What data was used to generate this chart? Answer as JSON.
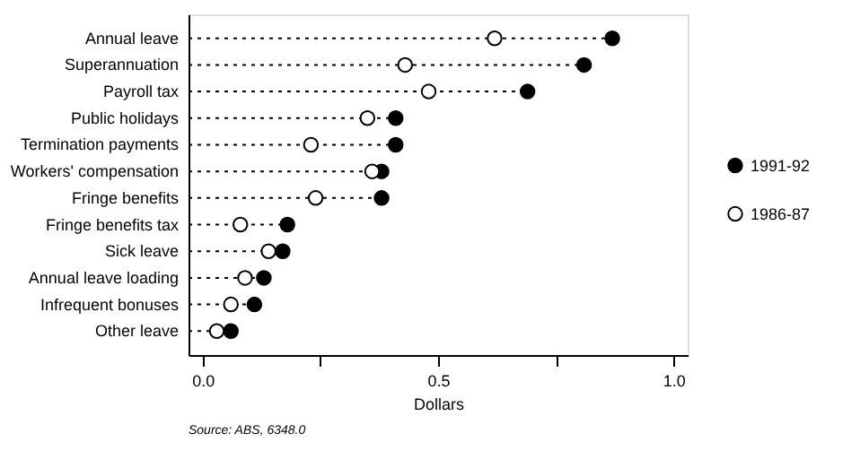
{
  "chart_data": {
    "type": "lollipop",
    "line_style": "dotted",
    "marker": "circle",
    "grid": false,
    "legend": "right",
    "xlabel": "Dollars",
    "orientation": "horizontal",
    "categories": [
      "Annual leave",
      "Superannuation",
      "Payroll tax",
      "Public holidays",
      "Termination payments",
      "Workers' compensation",
      "Fringe benefits",
      "Fringe benefits tax",
      "Sick leave",
      "Annual leave loading",
      "Infrequent bonuses",
      "Other leave"
    ],
    "series": [
      {
        "name": "1991-92",
        "color": "#000000",
        "values": [
          0.87,
          0.81,
          0.69,
          0.41,
          0.41,
          0.38,
          0.38,
          0.18,
          0.17,
          0.13,
          0.11,
          0.06
        ]
      },
      {
        "name": "1986-87",
        "color": "#ffffff",
        "values": [
          0.62,
          0.43,
          0.48,
          0.35,
          0.23,
          0.36,
          0.24,
          0.08,
          0.14,
          0.09,
          0.06,
          0.03
        ]
      }
    ],
    "xlim": [
      -0.03,
      1.03
    ],
    "xticks": [
      {
        "value": 0,
        "label": "0.0"
      },
      {
        "value": 0.25,
        "label": null
      },
      {
        "value": 0.5,
        "label": "0.5"
      },
      {
        "value": 0.75,
        "label": null
      },
      {
        "value": 1,
        "label": "1.0"
      }
    ],
    "annotations": [
      "Source: ABS, 6348.0"
    ]
  }
}
